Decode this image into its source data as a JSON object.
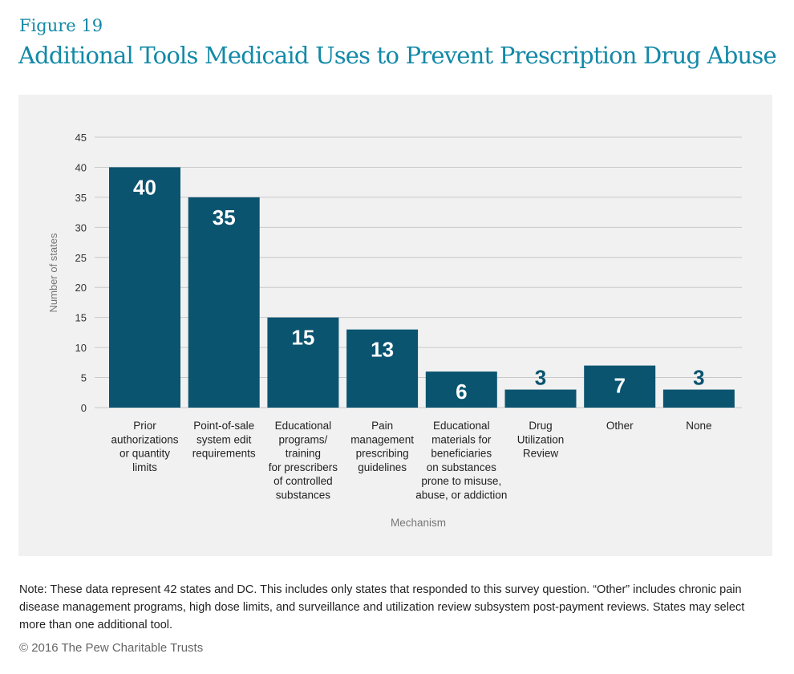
{
  "figure_label": "Figure 19",
  "chart_data": {
    "type": "bar",
    "title": "Additional Tools Medicaid Uses to Prevent Prescription Drug Abuse",
    "xlabel": "Mechanism",
    "ylabel": "Number of states",
    "ylim": [
      0,
      45
    ],
    "yticks": [
      0,
      5,
      10,
      15,
      20,
      25,
      30,
      35,
      40,
      45
    ],
    "grid": true,
    "categories": [
      [
        "Prior",
        "authorizations",
        "or quantity",
        "limits"
      ],
      [
        "Point-of-sale",
        "system edit",
        "requirements"
      ],
      [
        "Educational",
        "programs/",
        "training",
        "for prescribers",
        "of controlled",
        "substances"
      ],
      [
        "Pain",
        "management",
        "prescribing",
        "guidelines"
      ],
      [
        "Educational",
        "materials for",
        "beneficiaries",
        "on substances",
        "prone to misuse,",
        "abuse, or addiction"
      ],
      [
        "Drug",
        "Utilization",
        "Review"
      ],
      [
        "Other"
      ],
      [
        "None"
      ]
    ],
    "values": [
      40,
      35,
      15,
      13,
      6,
      3,
      7,
      3
    ],
    "bar_color": "#0b5470"
  },
  "note": "Note: These data represent 42 states and DC. This includes only states that responded to this survey question. “Other” includes chronic pain disease management programs, high dose limits, and surveillance and utilization review subsystem post-payment reviews. States may select more than one additional tool.",
  "copyright": "© 2016 The Pew Charitable Trusts"
}
